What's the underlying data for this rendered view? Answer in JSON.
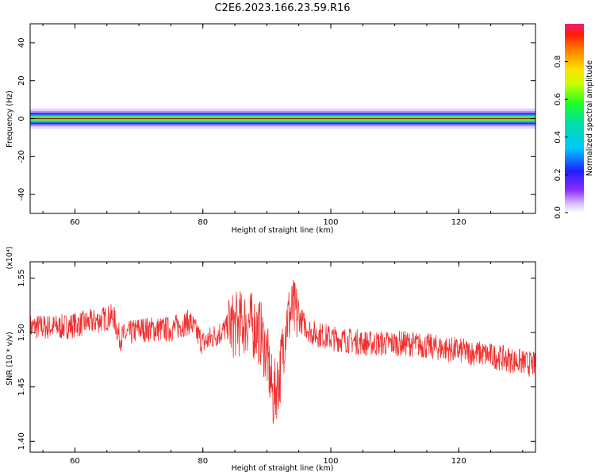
{
  "title": "C2E6.2023.166.23.59.R16",
  "colors": {
    "signal": "#f03030",
    "axis": "#000000",
    "background": "#ffffff"
  },
  "chart_data": [
    {
      "type": "heatmap",
      "xlabel": "Height of straight line (km)",
      "ylabel": "Frequency (Hz)",
      "xlim": [
        53,
        132
      ],
      "ylim": [
        -50,
        50
      ],
      "x_ticks": [
        "60",
        "80",
        "100",
        "120"
      ],
      "y_ticks": [
        "40",
        "20",
        "0",
        "-20",
        "-40"
      ],
      "grid": false,
      "colorbar": {
        "label": "Normalized spectral amplitude",
        "range": [
          0,
          1
        ],
        "ticks": [
          "0.0",
          "0.2",
          "0.4",
          "0.6",
          "0.8"
        ],
        "colormap": "rainbow"
      },
      "band": {
        "center_hz": 0,
        "half_width_hz": 3,
        "peak_amplitude": 1.0
      }
    },
    {
      "type": "line",
      "xlabel": "Height of straight line (km)",
      "ylabel": "SNR (10 * v/v)",
      "y_multiplier": "(x10⁴)",
      "xlim": [
        53,
        132
      ],
      "ylim": [
        1.39,
        1.565
      ],
      "x_ticks": [
        "60",
        "80",
        "100",
        "120"
      ],
      "y_ticks": [
        "1.40",
        "1.45",
        "1.50",
        "1.55"
      ],
      "grid": false,
      "series": [
        {
          "trend": {
            "x": [
              53,
              58,
              63,
              66,
              67,
              70,
              75,
              78,
              80,
              84,
              87,
              89,
              90,
              91,
              92,
              93,
              94,
              97,
              100,
              106,
              112,
              118,
              124,
              128,
              132
            ],
            "y": [
              1.505,
              1.505,
              1.51,
              1.515,
              1.495,
              1.503,
              1.503,
              1.51,
              1.49,
              1.505,
              1.51,
              1.5,
              1.48,
              1.44,
              1.46,
              1.51,
              1.52,
              1.5,
              1.495,
              1.49,
              1.49,
              1.485,
              1.48,
              1.475,
              1.47
            ]
          },
          "noise_amplitude": 0.012
        }
      ]
    }
  ]
}
